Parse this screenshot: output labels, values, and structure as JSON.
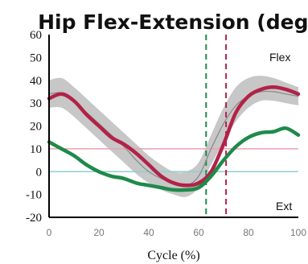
{
  "chart_data": {
    "type": "line",
    "title": "Hip Flex-Extension (deg)",
    "xlabel": "Cycle (%)",
    "ylabel": "",
    "xlim": [
      0,
      100
    ],
    "ylim": [
      -20,
      60
    ],
    "xticks": [
      0,
      20,
      40,
      60,
      80,
      100
    ],
    "yticks": [
      60,
      50,
      40,
      30,
      20,
      10,
      0,
      -10,
      -20
    ],
    "annotations": {
      "top": "Flex",
      "bottom": "Ext"
    },
    "grid": false,
    "series": [
      {
        "key": "normal_band",
        "color": "#bdbdbd",
        "x": [
          0,
          5,
          10,
          15,
          20,
          25,
          30,
          35,
          40,
          45,
          50,
          55,
          60,
          65,
          70,
          75,
          80,
          85,
          90,
          95,
          100
        ],
        "lower": [
          28,
          28,
          24,
          19,
          14,
          9,
          4,
          -1,
          -5,
          -8,
          -10,
          -11,
          -7,
          3,
          13,
          22,
          28,
          31,
          31,
          30,
          29
        ],
        "upper": [
          40,
          41,
          37,
          32,
          27,
          22,
          17,
          12,
          7,
          3,
          0,
          0,
          4,
          16,
          28,
          37,
          41,
          42,
          41,
          39,
          37
        ]
      },
      {
        "key": "normal_mean",
        "color": "#888888",
        "x": [
          0,
          5,
          10,
          15,
          20,
          25,
          30,
          35,
          40,
          45,
          50,
          55,
          60,
          65,
          70,
          75,
          80,
          85,
          90,
          95,
          100
        ],
        "values": [
          34,
          34.5,
          31,
          26,
          21,
          16,
          11,
          5,
          0,
          -3,
          -5,
          -6,
          -2,
          10,
          21,
          29,
          33,
          35,
          35,
          34,
          33
        ]
      },
      {
        "key": "red_side",
        "color": "#b22248",
        "x": [
          0,
          5,
          10,
          15,
          20,
          25,
          30,
          35,
          40,
          45,
          50,
          55,
          60,
          65,
          70,
          75,
          80,
          85,
          90,
          95,
          100
        ],
        "values": [
          32,
          34,
          31,
          25,
          20,
          15,
          12,
          8,
          3,
          -2,
          -5,
          -6,
          -5,
          0,
          12,
          26,
          33,
          36,
          37,
          36,
          34
        ]
      },
      {
        "key": "green_side",
        "color": "#1e8a4a",
        "x": [
          0,
          5,
          10,
          15,
          20,
          25,
          30,
          35,
          40,
          45,
          50,
          55,
          60,
          65,
          70,
          75,
          80,
          85,
          90,
          95,
          100
        ],
        "values": [
          13,
          10,
          7,
          3,
          0,
          -2,
          -3,
          -5,
          -6,
          -7,
          -8,
          -8,
          -7,
          -2,
          5,
          11,
          15,
          17,
          17.5,
          19,
          16
        ]
      }
    ],
    "reference_lines": [
      {
        "axis": "y",
        "value": 10,
        "color": "#e9a0b0"
      },
      {
        "axis": "y",
        "value": 0,
        "color": "#8fcfd0"
      },
      {
        "axis": "x",
        "value": 63,
        "color": "#1e8a4a",
        "style": "dashed"
      },
      {
        "axis": "x",
        "value": 71,
        "color": "#b22248",
        "style": "dashed"
      }
    ]
  }
}
